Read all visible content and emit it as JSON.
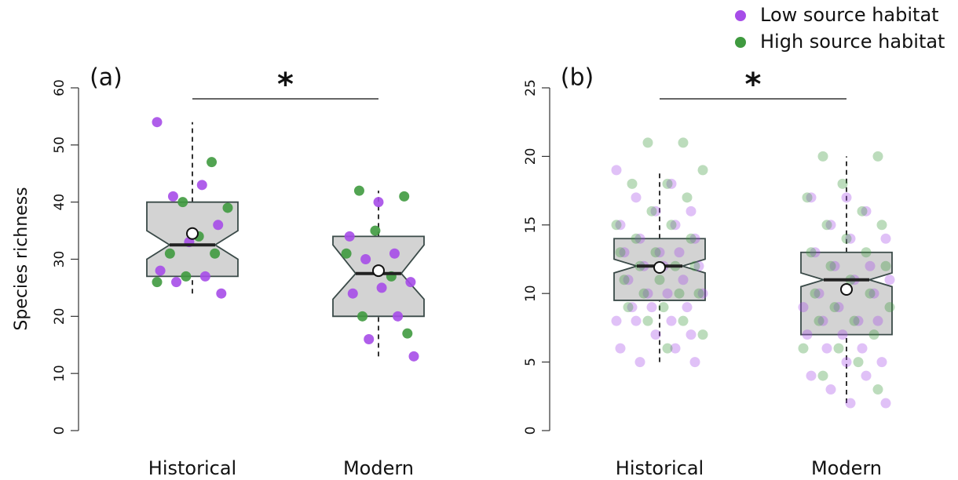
{
  "legend": [
    {
      "name": "Low source habitat",
      "color": "#a64de8"
    },
    {
      "name": "High source habitat",
      "color": "#3f9a3f"
    }
  ],
  "chart_data": [
    {
      "type": "box",
      "title": "(a)",
      "ylabel": "Species richness",
      "significance": "*",
      "categories": [
        "Historical",
        "Modern"
      ],
      "ylim": [
        0,
        60
      ],
      "yticks": [
        0,
        10,
        20,
        30,
        40,
        50,
        60
      ],
      "boxes": [
        {
          "whisker_low": 24,
          "q1": 27,
          "notch_low": 30,
          "median": 32.5,
          "notch_high": 35,
          "q3": 40,
          "whisker_high": 54,
          "mean": 34.5
        },
        {
          "whisker_low": 13,
          "q1": 20,
          "notch_low": 23,
          "median": 27.5,
          "notch_high": 32.5,
          "q3": 34,
          "whisker_high": 42,
          "mean": 28
        }
      ],
      "series": [
        {
          "color": "#a64de8",
          "values": [
            [
              54,
              43,
              41,
              36,
              33,
              28,
              27,
              26,
              24
            ],
            [
              40,
              34,
              31,
              30,
              26,
              25,
              24,
              20,
              16,
              13
            ]
          ]
        },
        {
          "color": "#3f9a3f",
          "values": [
            [
              47,
              40,
              39,
              34,
              31,
              31,
              27,
              26
            ],
            [
              42,
              41,
              35,
              31,
              27,
              20,
              17
            ]
          ]
        }
      ]
    },
    {
      "type": "box",
      "title": "(b)",
      "significance": "*",
      "categories": [
        "Historical",
        "Modern"
      ],
      "ylim": [
        0,
        25
      ],
      "yticks": [
        0,
        5,
        10,
        15,
        20,
        25
      ],
      "boxes": [
        {
          "whisker_low": 5,
          "q1": 9.5,
          "notch_low": 11.5,
          "median": 12,
          "notch_high": 12.5,
          "q3": 14,
          "whisker_high": 19,
          "mean": 11.9
        },
        {
          "whisker_low": 2,
          "q1": 7,
          "notch_low": 10.5,
          "median": 11,
          "notch_high": 11.5,
          "q3": 13,
          "whisker_high": 20,
          "mean": 10.3
        }
      ],
      "series": [
        {
          "color": "#a64de8",
          "values": [
            [
              19,
              18,
              17,
              16,
              16,
              15,
              15,
              14,
              14,
              13,
              13,
              13,
              12,
              12,
              12,
              11,
              11,
              10,
              10,
              10,
              9,
              9,
              9,
              8,
              8,
              8,
              7,
              7,
              6,
              6,
              5,
              5
            ],
            [
              17,
              17,
              16,
              15,
              14,
              14,
              13,
              12,
              12,
              11,
              11,
              10,
              10,
              9,
              9,
              8,
              8,
              8,
              7,
              7,
              6,
              6,
              5,
              5,
              4,
              4,
              3,
              2,
              2
            ]
          ]
        },
        {
          "color": "#3f9a3f",
          "values": [
            [
              21,
              21,
              19,
              18,
              18,
              17,
              16,
              15,
              15,
              14,
              14,
              13,
              13,
              12,
              12,
              12,
              11,
              11,
              10,
              10,
              10,
              9,
              9,
              8,
              8,
              7,
              6
            ],
            [
              20,
              20,
              18,
              17,
              16,
              15,
              15,
              14,
              13,
              13,
              12,
              12,
              11,
              10,
              10,
              9,
              9,
              8,
              8,
              7,
              6,
              6,
              5,
              4,
              3
            ]
          ]
        }
      ]
    }
  ]
}
